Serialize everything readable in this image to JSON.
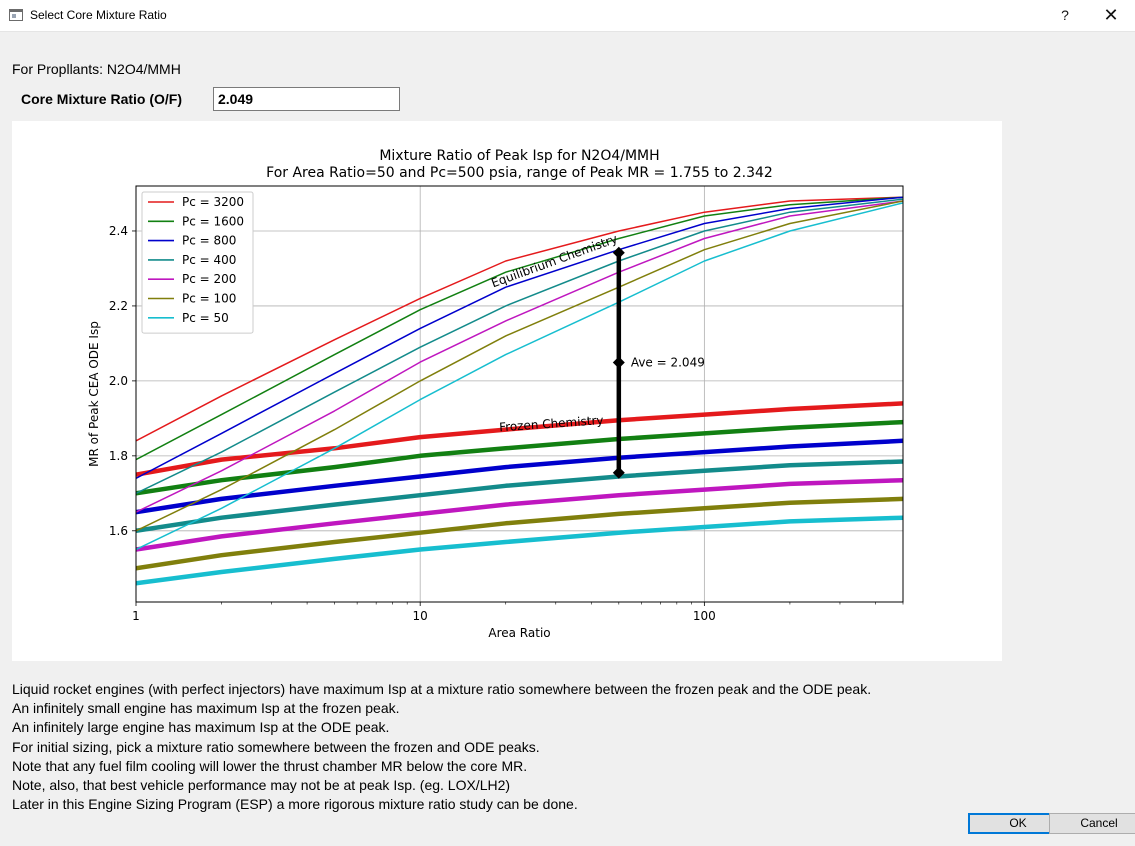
{
  "window": {
    "title": "Select Core Mixture Ratio",
    "help_label": "?",
    "close_label": "✕"
  },
  "propellants_text": "For Propllants: N2O4/MMH",
  "mixture_ratio": {
    "label": "Core Mixture Ratio (O/F)",
    "value": "2.049"
  },
  "chart_data": {
    "type": "line",
    "title": "Mixture Ratio of Peak Isp for N2O4/MMH",
    "subtitle": "For Area Ratio=50 and Pc=500 psia, range of Peak MR = 1.755 to 2.342",
    "xlabel": "Area Ratio",
    "ylabel": "MR of Peak CEA ODE Isp",
    "xscale": "log",
    "xlim": [
      1,
      500
    ],
    "ylim": [
      1.41,
      2.52
    ],
    "x_ticks": [
      "1",
      "10",
      "100"
    ],
    "y_ticks": [
      "1.6",
      "1.8",
      "2.0",
      "2.2",
      "2.4"
    ],
    "grid": true,
    "legend_position": "top-left",
    "x": [
      1,
      2,
      5,
      10,
      20,
      50,
      100,
      200,
      500
    ],
    "series": [
      {
        "name": "Pc = 3200",
        "color": "#e41a1c",
        "equilibrium": [
          1.84,
          1.96,
          2.11,
          2.22,
          2.32,
          2.4,
          2.45,
          2.48,
          2.49
        ],
        "frozen": [
          1.75,
          1.79,
          1.82,
          1.85,
          1.87,
          1.895,
          1.91,
          1.925,
          1.94
        ]
      },
      {
        "name": "Pc = 1600",
        "color": "#128012",
        "equilibrium": [
          1.79,
          1.91,
          2.07,
          2.19,
          2.29,
          2.38,
          2.44,
          2.47,
          2.49
        ],
        "frozen": [
          1.7,
          1.735,
          1.77,
          1.8,
          1.82,
          1.845,
          1.86,
          1.875,
          1.89
        ]
      },
      {
        "name": "Pc = 800",
        "color": "#0000cc",
        "equilibrium": [
          1.74,
          1.86,
          2.02,
          2.14,
          2.25,
          2.35,
          2.42,
          2.46,
          2.49
        ],
        "frozen": [
          1.65,
          1.685,
          1.72,
          1.745,
          1.77,
          1.795,
          1.81,
          1.825,
          1.84
        ]
      },
      {
        "name": "Pc = 400",
        "color": "#138b8b",
        "equilibrium": [
          1.7,
          1.81,
          1.97,
          2.09,
          2.2,
          2.32,
          2.4,
          2.45,
          2.485
        ],
        "frozen": [
          1.6,
          1.635,
          1.67,
          1.695,
          1.72,
          1.745,
          1.76,
          1.775,
          1.785
        ]
      },
      {
        "name": "Pc = 200",
        "color": "#bf17bf",
        "equilibrium": [
          1.65,
          1.76,
          1.92,
          2.05,
          2.16,
          2.29,
          2.38,
          2.44,
          2.48
        ],
        "frozen": [
          1.55,
          1.585,
          1.62,
          1.645,
          1.67,
          1.695,
          1.71,
          1.725,
          1.735
        ]
      },
      {
        "name": "Pc = 100",
        "color": "#807f0c",
        "equilibrium": [
          1.6,
          1.71,
          1.87,
          2.0,
          2.12,
          2.25,
          2.35,
          2.42,
          2.48
        ],
        "frozen": [
          1.5,
          1.535,
          1.57,
          1.595,
          1.62,
          1.645,
          1.66,
          1.675,
          1.685
        ]
      },
      {
        "name": "Pc = 50",
        "color": "#17becf",
        "equilibrium": [
          1.55,
          1.66,
          1.82,
          1.95,
          2.07,
          2.21,
          2.32,
          2.4,
          2.475
        ],
        "frozen": [
          1.46,
          1.49,
          1.525,
          1.55,
          1.57,
          1.595,
          1.61,
          1.625,
          1.635
        ]
      }
    ],
    "range_marker": {
      "x": 50,
      "low": 1.755,
      "ave": 2.049,
      "high": 2.342,
      "label": "Ave = 2.049"
    },
    "annotations": [
      {
        "text": "Equilibrium Chemistry",
        "x": 30,
        "y": 2.31,
        "angle": -20
      },
      {
        "text": "Frozen Chemistry",
        "x": 29,
        "y": 1.875,
        "angle": -4
      }
    ]
  },
  "notes": [
    "Liquid rocket engines (with perfect injectors) have maximum Isp at a mixture ratio somewhere between the frozen peak and the ODE peak.",
    "An infinitely small engine has maximum Isp at the frozen peak.",
    "An infinitely large engine has maximum Isp at the ODE peak.",
    "For initial sizing, pick a mixture ratio somewhere between the frozen and ODE peaks.",
    "Note that any fuel film cooling will lower the thrust chamber MR below the core MR.",
    "Note, also, that best vehicle performance may not be at peak Isp. (eg. LOX/LH2)",
    "Later in this Engine Sizing Program (ESP) a more rigorous mixture ratio study can be done."
  ],
  "buttons": {
    "ok_label": "OK",
    "cancel_label": "Cancel"
  }
}
